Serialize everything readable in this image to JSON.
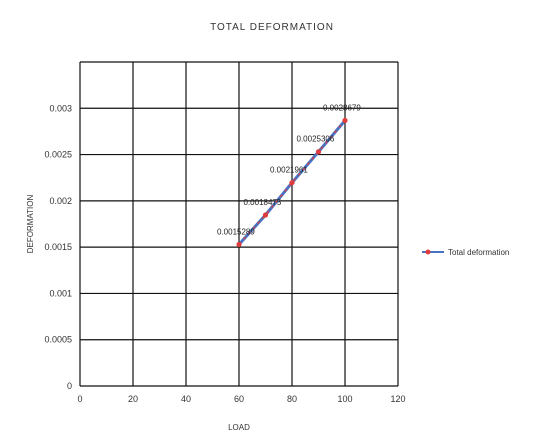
{
  "chart_data": {
    "type": "line",
    "title": "TOTAL DEFORMATION",
    "xlabel": "LOAD",
    "ylabel": "DEFORMATION",
    "xlim": [
      0,
      120
    ],
    "ylim": [
      0,
      0.0035
    ],
    "x_ticks": [
      "0",
      "20",
      "40",
      "60",
      "80",
      "100",
      "120"
    ],
    "y_ticks": [
      "0",
      "0.0005",
      "0.001",
      "0.0015",
      "0.002",
      "0.0025",
      "0.003"
    ],
    "grid": true,
    "legend_position": "right",
    "series": [
      {
        "name": "Total deformation",
        "color": "#4a72c4",
        "marker_color": "#e03c3c",
        "x": [
          60,
          70,
          80,
          90,
          100
        ],
        "y": [
          0.0015289,
          0.0018475,
          0.0021961,
          0.0025306,
          0.0028679
        ],
        "labels": [
          "0.0015289",
          "0.0018475",
          "0.0021961",
          "0.0025306",
          "0.0028679"
        ]
      }
    ]
  }
}
